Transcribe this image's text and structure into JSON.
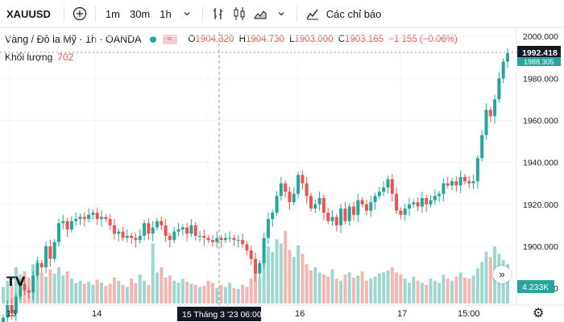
{
  "toolbar": {
    "symbol": "XAUUSD",
    "add_icon": "plus-circle-icon",
    "intervals": [
      "1m",
      "30m",
      "1h"
    ],
    "indicators_label": "Các chỉ báo"
  },
  "legend": {
    "title": "Vàng / Đô la Mỹ · 1h · OANDA",
    "ohlc": {
      "o_label": "O",
      "o": "1904.320",
      "h_label": "H",
      "h": "1904.730",
      "l_label": "L",
      "l": "1903.000",
      "c_label": "C",
      "c": "1903.165",
      "change": "−1.155 (−0.06%)"
    },
    "volume_label": "Khối lượng",
    "volume_value": "702"
  },
  "colors": {
    "up": "#26a69a",
    "down": "#ef5350",
    "vol_up": "#9fd6d0",
    "vol_down": "#f5b5b3",
    "price_tag": "#131722",
    "current_tag": "#26a69a"
  },
  "chart_data": {
    "type": "candlestick",
    "y_ticks": [
      "2000.000",
      "1980.000",
      "1960.000",
      "1940.000",
      "1920.000",
      "1900.000",
      "1880.000"
    ],
    "ylim": [
      1872,
      2002
    ],
    "x_ticks": [
      "13",
      "14",
      "15 Tháng 3 '23",
      "16",
      "17",
      "15:00"
    ],
    "crosshair_label": "15 Tháng 3 '23   06:00",
    "price_tag": "1992.418",
    "current_price": "1988.305",
    "volume_tag": "4.233K",
    "closes": [
      1866,
      1872,
      1868,
      1876,
      1882,
      1879,
      1878,
      1886,
      1892,
      1890,
      1900,
      1894,
      1902,
      1911,
      1912,
      1908,
      1912,
      1913,
      1914,
      1913,
      1915,
      1916,
      1913,
      1914,
      1913,
      1910,
      1906,
      1907,
      1904,
      1905,
      1904,
      1903,
      1905,
      1911,
      1906,
      1909,
      1912,
      1910,
      1905,
      1903,
      1907,
      1908,
      1909,
      1906,
      1910,
      1905,
      1905,
      1904,
      1903,
      1902,
      1904,
      1903,
      1904,
      1904,
      1903,
      1903,
      1901,
      1898,
      1894,
      1887,
      1892,
      1904,
      1913,
      1916,
      1924,
      1930,
      1926,
      1921,
      1925,
      1934,
      1930,
      1924,
      1918,
      1920,
      1923,
      1916,
      1912,
      1914,
      1910,
      1918,
      1912,
      1919,
      1915,
      1922,
      1920,
      1917,
      1921,
      1924,
      1926,
      1928,
      1932,
      1925,
      1917,
      1915,
      1918,
      1920,
      1921,
      1919,
      1923,
      1920,
      1922,
      1924,
      1925,
      1930,
      1929,
      1931,
      1929,
      1933,
      1931,
      1930,
      1931,
      1942,
      1953,
      1965,
      1962,
      1970,
      1980,
      1988,
      1992
    ],
    "volumes": [
      0.16,
      0.22,
      0.18,
      0.35,
      0.28,
      0.31,
      0.25,
      0.38,
      0.42,
      0.3,
      0.26,
      0.33,
      0.29,
      0.35,
      0.27,
      0.31,
      0.24,
      0.2,
      0.22,
      0.19,
      0.21,
      0.18,
      0.23,
      0.2,
      0.17,
      0.19,
      0.25,
      0.22,
      0.18,
      0.16,
      0.24,
      0.2,
      0.28,
      0.22,
      0.18,
      0.58,
      0.3,
      0.35,
      0.25,
      0.27,
      0.22,
      0.2,
      0.24,
      0.21,
      0.19,
      0.18,
      0.16,
      0.17,
      0.22,
      0.2,
      0.15,
      0.18,
      0.16,
      0.2,
      0.15,
      0.14,
      0.18,
      0.16,
      0.24,
      0.32,
      0.26,
      0.48,
      0.55,
      0.5,
      0.62,
      0.58,
      0.7,
      0.52,
      0.45,
      0.56,
      0.48,
      0.38,
      0.32,
      0.35,
      0.3,
      0.28,
      0.26,
      0.33,
      0.24,
      0.22,
      0.28,
      0.3,
      0.25,
      0.27,
      0.31,
      0.22,
      0.24,
      0.26,
      0.29,
      0.3,
      0.32,
      0.35,
      0.3,
      0.28,
      0.24,
      0.2,
      0.26,
      0.22,
      0.2,
      0.18,
      0.24,
      0.22,
      0.2,
      0.28,
      0.24,
      0.22,
      0.26,
      0.3,
      0.25,
      0.24,
      0.27,
      0.34,
      0.4,
      0.5,
      0.45,
      0.55,
      0.48,
      0.42,
      0.38
    ]
  }
}
